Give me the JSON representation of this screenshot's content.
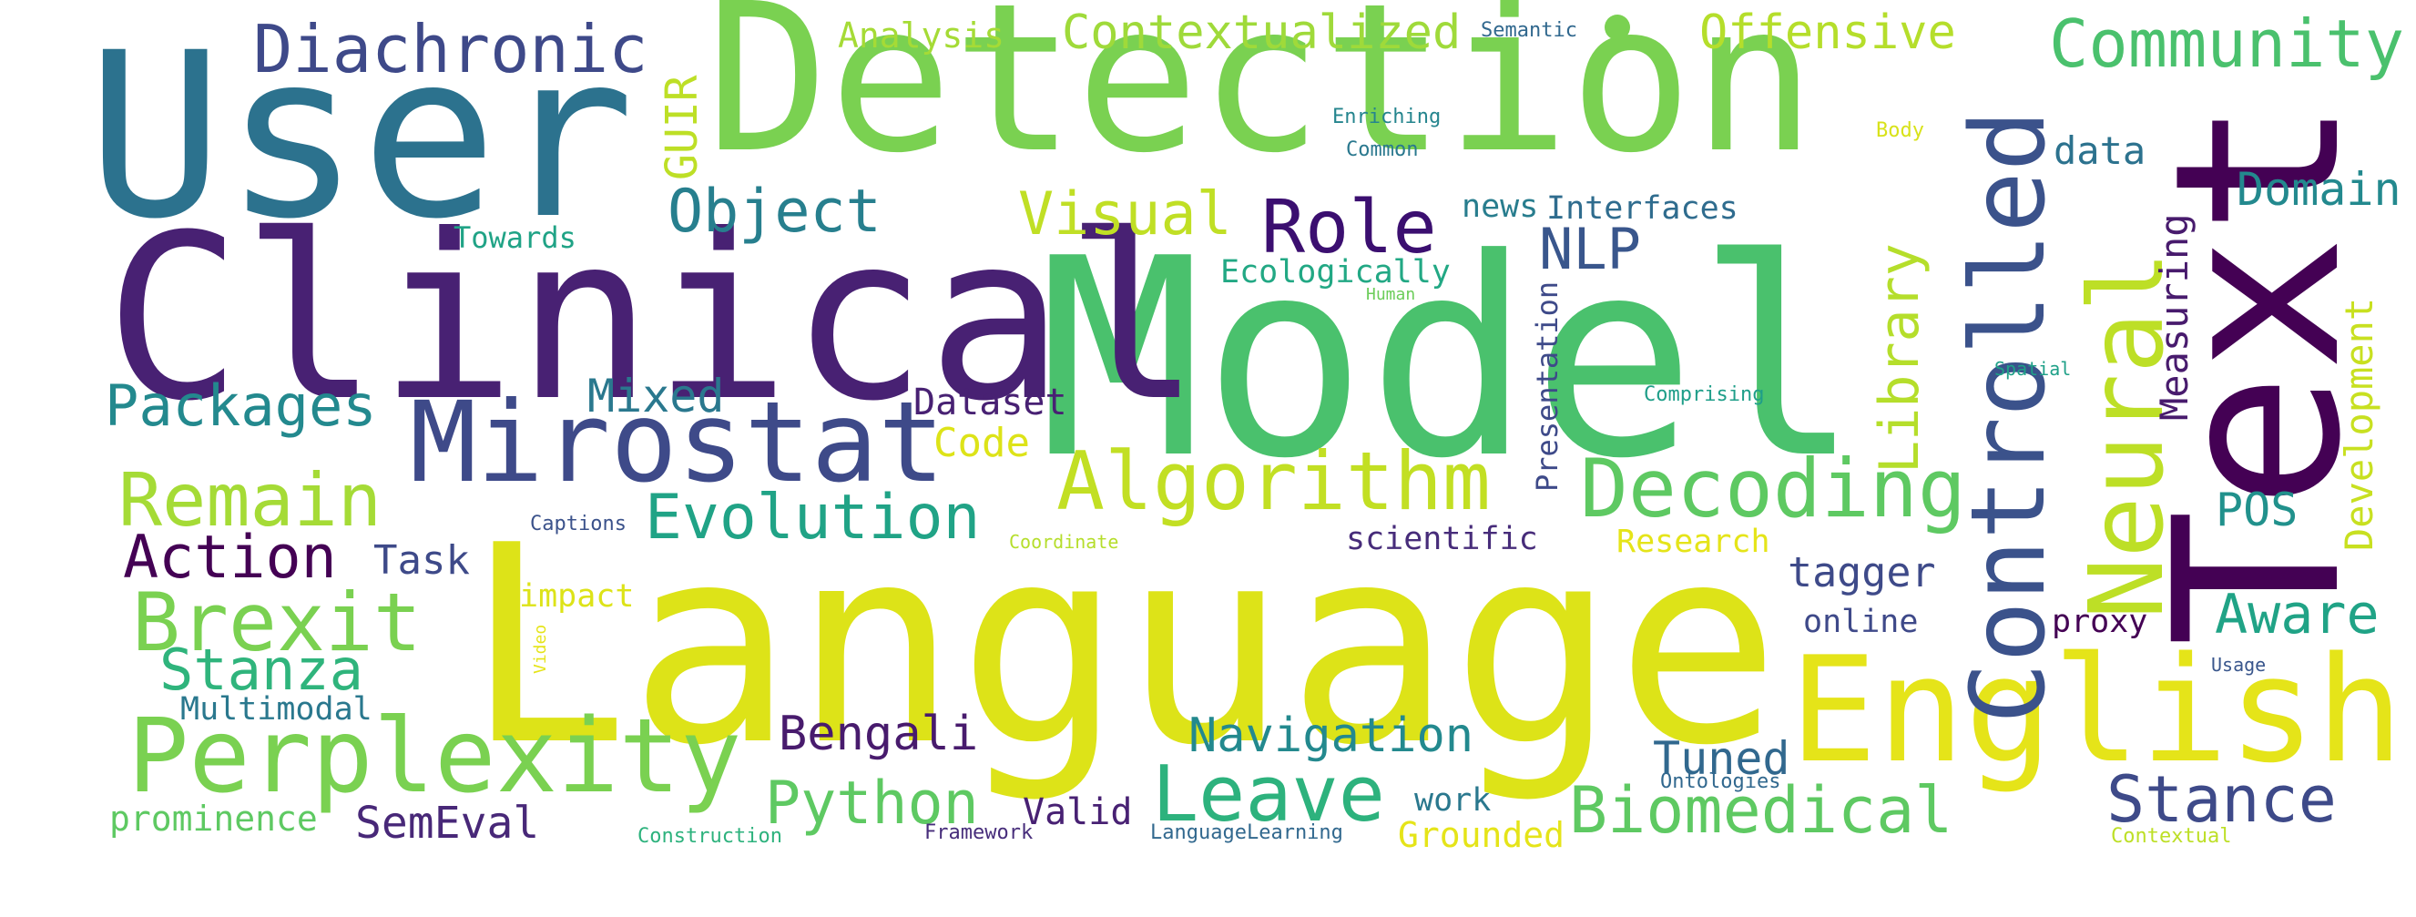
{
  "words": [
    {
      "text": "Language",
      "color": "#dde318"
    },
    {
      "text": "Model",
      "color": "#4ac16d"
    },
    {
      "text": "Detection",
      "color": "#7ad151"
    },
    {
      "text": "User",
      "color": "#2c728e"
    },
    {
      "text": "Clinical",
      "color": "#482173"
    },
    {
      "text": "Text",
      "color": "#440154"
    },
    {
      "text": "English",
      "color": "#e5e419"
    },
    {
      "text": "Mirostat",
      "color": "#3e4a89"
    },
    {
      "text": "Perplexity",
      "color": "#7ad151"
    },
    {
      "text": "Controlled",
      "color": "#3b528b"
    },
    {
      "text": "Neural",
      "color": "#bddf26"
    },
    {
      "text": "Decoding",
      "color": "#5ec962"
    },
    {
      "text": "Algorithm",
      "color": "#c2df23"
    },
    {
      "text": "Community",
      "color": "#4ac16d"
    },
    {
      "text": "Diachronic",
      "color": "#3e4989"
    },
    {
      "text": "Contextualized",
      "color": "#9fda3a"
    },
    {
      "text": "Offensive",
      "color": "#b5de2b"
    },
    {
      "text": "Analysis",
      "color": "#a5db36"
    },
    {
      "text": "Semantic",
      "color": "#31688e"
    },
    {
      "text": "Enriching",
      "color": "#25858e"
    },
    {
      "text": "Common",
      "color": "#2a788e"
    },
    {
      "text": "Body",
      "color": "#d8e219"
    },
    {
      "text": "GUIR",
      "color": "#bddf26"
    },
    {
      "text": "Object",
      "color": "#277f8e"
    },
    {
      "text": "Visual",
      "color": "#c0df25"
    },
    {
      "text": "Role",
      "color": "#3b0f70"
    },
    {
      "text": "NLP",
      "color": "#39568c"
    },
    {
      "text": "news",
      "color": "#287d8e"
    },
    {
      "text": "Interfaces",
      "color": "#2f6c8e"
    },
    {
      "text": "data",
      "color": "#2c728e"
    },
    {
      "text": "Domain",
      "color": "#23898e"
    },
    {
      "text": "Measuring",
      "color": "#481b6d"
    },
    {
      "text": "Development",
      "color": "#c8e020"
    },
    {
      "text": "Towards",
      "color": "#20a386"
    },
    {
      "text": "Ecologically",
      "color": "#22a884"
    },
    {
      "text": "Human",
      "color": "#6ccd5a"
    },
    {
      "text": "Presentation",
      "color": "#3e4a89"
    },
    {
      "text": "Library",
      "color": "#b5de2b"
    },
    {
      "text": "Spatial",
      "color": "#1fa088"
    },
    {
      "text": "Comprising",
      "color": "#1f9e89"
    },
    {
      "text": "Packages",
      "color": "#23898e"
    },
    {
      "text": "Mixed",
      "color": "#2a788e"
    },
    {
      "text": "Dataset",
      "color": "#482173"
    },
    {
      "text": "Code",
      "color": "#dde318"
    },
    {
      "text": "Remain",
      "color": "#a5db36"
    },
    {
      "text": "Evolution",
      "color": "#20a386"
    },
    {
      "text": "POS",
      "color": "#21918c"
    },
    {
      "text": "Action",
      "color": "#440154"
    },
    {
      "text": "Task",
      "color": "#3e4a89"
    },
    {
      "text": "Captions",
      "color": "#3b528b"
    },
    {
      "text": "Coordinate",
      "color": "#b5de2b"
    },
    {
      "text": "scientific",
      "color": "#472c7a"
    },
    {
      "text": "Research",
      "color": "#e5e419"
    },
    {
      "text": "tagger",
      "color": "#3e4a89"
    },
    {
      "text": "Brexit",
      "color": "#7ad151"
    },
    {
      "text": "impact",
      "color": "#dde318"
    },
    {
      "text": "online",
      "color": "#3e4989"
    },
    {
      "text": "proxy",
      "color": "#440154"
    },
    {
      "text": "Aware",
      "color": "#20a386"
    },
    {
      "text": "Stanza",
      "color": "#2fb47c"
    },
    {
      "text": "Video",
      "color": "#e5e419"
    },
    {
      "text": "Usage",
      "color": "#39568c"
    },
    {
      "text": "Multimodal",
      "color": "#2a788e"
    },
    {
      "text": "Bengali",
      "color": "#481b6d"
    },
    {
      "text": "Navigation",
      "color": "#23898e"
    },
    {
      "text": "Tuned",
      "color": "#31688e"
    },
    {
      "text": "Python",
      "color": "#5ec962"
    },
    {
      "text": "Leave",
      "color": "#2db27d"
    },
    {
      "text": "Valid",
      "color": "#482173"
    },
    {
      "text": "work",
      "color": "#2a788e"
    },
    {
      "text": "Biomedical",
      "color": "#5ec962"
    },
    {
      "text": "Stance",
      "color": "#3e4a89"
    },
    {
      "text": "Ontologies",
      "color": "#31688e"
    },
    {
      "text": "prominence",
      "color": "#5ec962"
    },
    {
      "text": "SemEval",
      "color": "#482878"
    },
    {
      "text": "Construction",
      "color": "#2db27d"
    },
    {
      "text": "Framework",
      "color": "#472d7b"
    },
    {
      "text": "LanguageLearning",
      "color": "#31688e"
    },
    {
      "text": "Grounded",
      "color": "#e5e419"
    },
    {
      "text": "Contextual",
      "color": "#bddf26"
    }
  ],
  "colors": {
    "background": "#ffffff",
    "dot": "#7ad151"
  }
}
